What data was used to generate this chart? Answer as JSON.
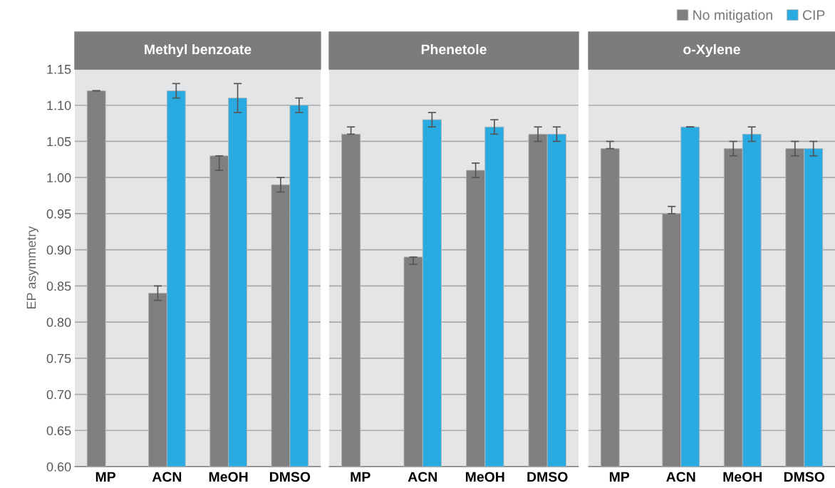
{
  "chart_data": [
    {
      "type": "bar",
      "title": "Methyl benzoate",
      "ylabel": "EP asymmetry",
      "categories": [
        "MP",
        "ACN",
        "MeOH",
        "DMSO"
      ],
      "ylim": [
        0.6,
        1.15
      ],
      "yticks": [
        {
          "value": 0.6,
          "label": "0.60"
        },
        0.65,
        {
          "value": 0.7,
          "label": "0.70"
        },
        0.75,
        {
          "value": 0.8,
          "label": "0.80"
        },
        0.85,
        {
          "value": 0.9,
          "label": "0.90"
        },
        0.95,
        {
          "value": 1.0,
          "label": "1.00"
        },
        1.05,
        {
          "value": 1.1,
          "label": "1.10"
        },
        1.15
      ],
      "grid": "y",
      "series": [
        {
          "color": "#7f7f7f",
          "values": [
            1.12,
            0.84,
            1.03,
            0.99
          ],
          "errors": [
            0,
            0.01,
            [
              1.01,
              1.03
            ],
            0.01
          ]
        },
        {
          "color": "#29abe2",
          "values": [
            null,
            1.12,
            1.11,
            1.1
          ],
          "errors": [
            null,
            0.01,
            0.02,
            0.01
          ]
        }
      ]
    },
    {
      "type": "bar",
      "title": "Phenetole",
      "categories": [
        "MP",
        "ACN",
        "MeOH",
        "DMSO"
      ],
      "ylim": [
        0.6,
        1.15
      ],
      "yticks": [
        0.6,
        0.65,
        0.7,
        0.75,
        0.8,
        0.85,
        0.9,
        0.95,
        1.0,
        1.05,
        1.1,
        1.15
      ],
      "grid": "y",
      "tick_labels": "x",
      "series": [
        {
          "color": "#7f7f7f",
          "values": [
            1.06,
            0.89,
            1.01,
            1.06
          ],
          "errors": [
            [
              1.06,
              1.07
            ],
            [
              0.88,
              0.89
            ],
            0.01,
            0.01
          ]
        },
        {
          "color": "#29abe2",
          "values": [
            null,
            1.08,
            1.07,
            1.06
          ],
          "errors": [
            null,
            0.01,
            0.01,
            0.01
          ]
        }
      ]
    },
    {
      "type": "bar",
      "title": "o-Xylene",
      "categories": [
        "MP",
        "ACN",
        "MeOH",
        "DMSO"
      ],
      "ylim": [
        0.6,
        1.15
      ],
      "yticks": [
        0.6,
        0.65,
        0.7,
        0.75,
        0.8,
        0.85,
        0.9,
        0.95,
        1.0,
        1.05,
        1.1,
        1.15
      ],
      "grid": "y",
      "tick_labels": "x",
      "legend": "top right",
      "series": [
        {
          "name": "No mitigation",
          "color": "#7f7f7f",
          "values": [
            1.04,
            0.95,
            1.04,
            1.04
          ],
          "errors": [
            [
              1.04,
              1.05
            ],
            [
              0.95,
              0.96
            ],
            0.01,
            0.01
          ]
        },
        {
          "name": "CIP",
          "color": "#29abe2",
          "values": [
            null,
            1.07,
            1.06,
            1.04
          ],
          "errors": [
            null,
            0,
            0.01,
            0.01
          ]
        }
      ]
    }
  ]
}
